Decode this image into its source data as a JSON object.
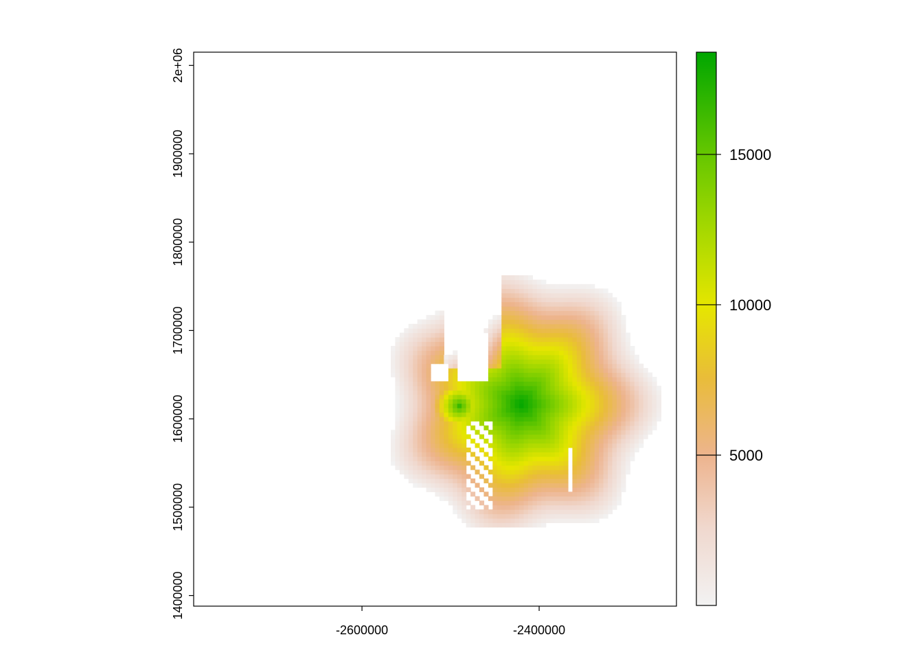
{
  "chart_data": {
    "type": "heatmap",
    "title": "",
    "xlabel": "",
    "ylabel": "",
    "xlim": [
      -2790000,
      -2245000
    ],
    "ylim": [
      1388000,
      2015000
    ],
    "x_ticks": [
      {
        "value": -2600000,
        "label": "-2600000"
      },
      {
        "value": -2400000,
        "label": "-2400000"
      }
    ],
    "y_ticks": [
      {
        "value": 1400000,
        "label": "1400000"
      },
      {
        "value": 1500000,
        "label": "1500000"
      },
      {
        "value": 1600000,
        "label": "1600000"
      },
      {
        "value": 1700000,
        "label": "1700000"
      },
      {
        "value": 1800000,
        "label": "1800000"
      },
      {
        "value": 1900000,
        "label": "1900000"
      },
      {
        "value": 2000000,
        "label": "2e+06"
      }
    ],
    "raster": {
      "grid_spacing": 5000,
      "center": [
        -2420000,
        1617000
      ],
      "max_value": 18400,
      "value_range": [
        0,
        18400
      ],
      "peak_cells": [
        {
          "x": -2425000,
          "y": 1620000,
          "value": 18000
        },
        {
          "x": -2490000,
          "y": 1615000,
          "value": 16500
        }
      ]
    },
    "colorbar": {
      "range": [
        0,
        18400
      ],
      "ticks": [
        {
          "value": 5000,
          "label": "5000"
        },
        {
          "value": 10000,
          "label": "10000"
        },
        {
          "value": 15000,
          "label": "15000"
        }
      ],
      "colors": [
        "#F2F2F2",
        "#EDB48E",
        "#E6E600",
        "#63C600",
        "#00A600"
      ]
    }
  }
}
